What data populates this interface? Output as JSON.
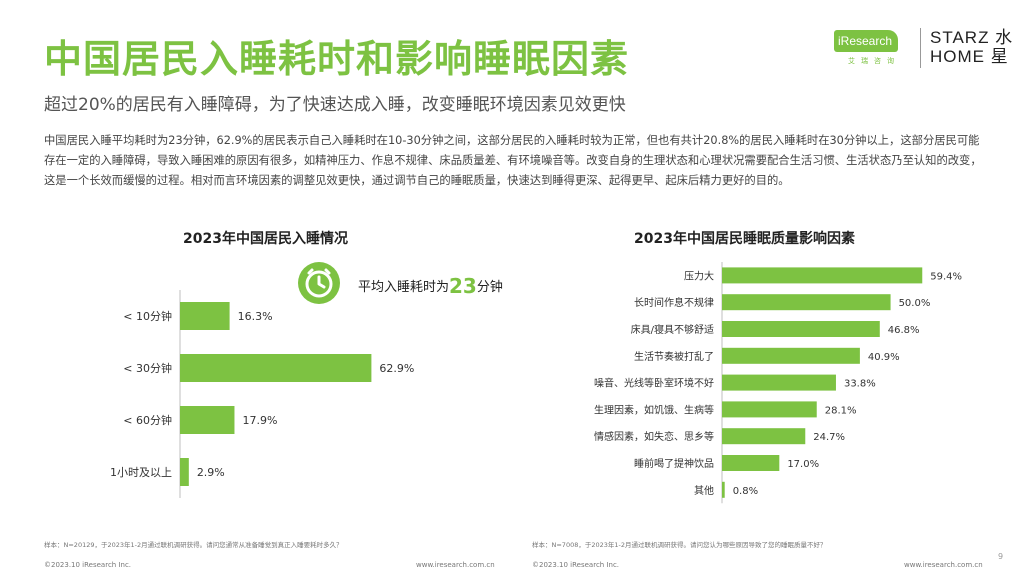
{
  "header": {
    "title": "中国居民入睡耗时和影响睡眠因素",
    "subtitle": "超过20%的居民有入睡障碍，为了快速达成入睡，改变睡眠环境因素见效更快",
    "body": "中国居民入睡平均耗时为23分钟，62.9%的居民表示自己入睡耗时在10-30分钟之间，这部分居民的入睡耗时较为正常，但也有共计20.8%的居民入睡耗时在30分钟以上，这部分居民可能存在一定的入睡障碍，导致入睡困难的原因有很多，如精神压力、作息不规律、床品质量差、有环境噪音等。改变自身的生理状态和心理状况需要配合生活习惯、生活状态乃至认知的改变，这是一个长效而缓慢的过程。相对而言环境因素的调整见效更快，通过调节自己的睡眠质量，快速达到睡得更深、起得更早、起床后精力更好的目的。"
  },
  "logos": {
    "iresearch": "iResearch",
    "iresearch_cn": "艾瑞咨询",
    "starz_line1": "STARZ 水",
    "starz_line2": "HOME 星"
  },
  "callout": {
    "prefix": "平均入睡耗时为",
    "value": "23",
    "suffix": "分钟"
  },
  "colors": {
    "brand_green": "#7dc242",
    "axis_gray": "#bfbfbf"
  },
  "chart_data": [
    {
      "type": "bar",
      "orientation": "horizontal",
      "title": "2023年中国居民入睡情况",
      "categories": [
        "< 10分钟",
        "< 30分钟",
        "< 60分钟",
        "1小时及以上"
      ],
      "values": [
        16.3,
        62.9,
        17.9,
        2.9
      ],
      "value_labels": [
        "16.3%",
        "62.9%",
        "17.9%",
        "2.9%"
      ],
      "unit": "%",
      "xlim": [
        0,
        70
      ],
      "grid": false,
      "color": "#7dc242"
    },
    {
      "type": "bar",
      "orientation": "horizontal",
      "title": "2023年中国居民睡眠质量影响因素",
      "categories": [
        "压力大",
        "长时间作息不规律",
        "床具/寝具不够舒适",
        "生活节奏被打乱了",
        "噪音、光线等卧室环境不好",
        "生理因素，如饥饿、生病等",
        "情感因素，如失恋、思乡等",
        "睡前喝了提神饮品",
        "其他"
      ],
      "values": [
        59.4,
        50.0,
        46.8,
        40.9,
        33.8,
        28.1,
        24.7,
        17.0,
        0.8
      ],
      "value_labels": [
        "59.4%",
        "50.0%",
        "46.8%",
        "40.9%",
        "33.8%",
        "28.1%",
        "24.7%",
        "17.0%",
        "0.8%"
      ],
      "unit": "%",
      "xlim": [
        0,
        70
      ],
      "grid": false,
      "color": "#7dc242"
    }
  ],
  "footnotes": {
    "left": "样本：N=20129，于2023年1-2月通过联机调研获得。请问您通常从准备睡觉到真正入睡要耗时多久？",
    "right": "样本：N=7008，于2023年1-2月通过联机调研获得。请问您认为哪些原因导致了您的睡眠质量不好？"
  },
  "footer": {
    "copyright_left": "©2023.10 iResearch Inc.",
    "url_left": "www.iresearch.com.cn",
    "copyright_right": "©2023.10 iResearch Inc.",
    "url_right": "www.iresearch.com.cn",
    "page": "9"
  }
}
